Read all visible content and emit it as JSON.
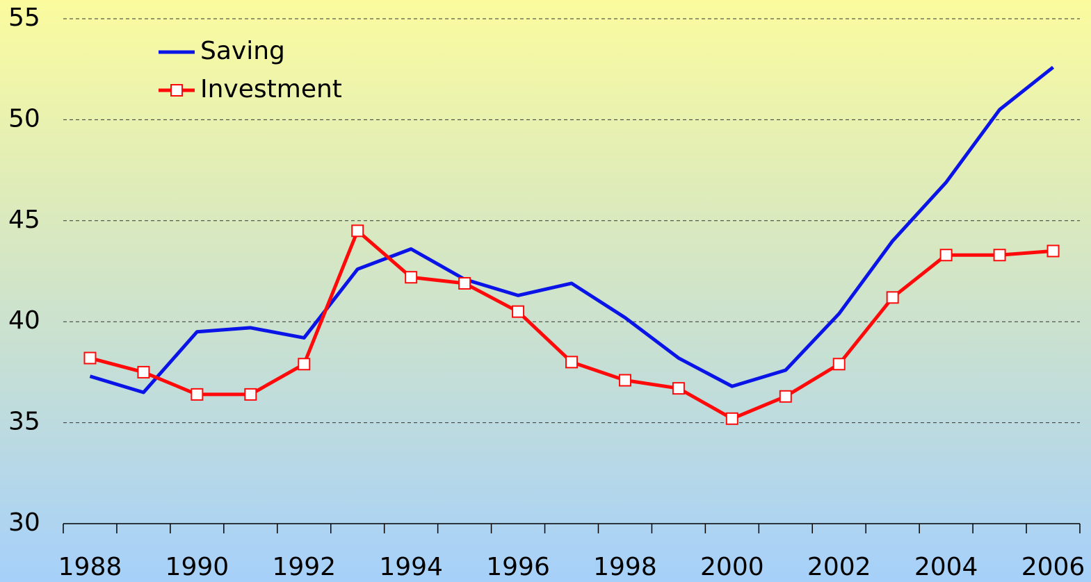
{
  "chart_data": {
    "type": "line",
    "categories": [
      "1988",
      null,
      "1990",
      null,
      "1992",
      null,
      "1994",
      null,
      "1996",
      null,
      "1998",
      null,
      "2000",
      null,
      "2002",
      null,
      "2004",
      null,
      "2006"
    ],
    "series": [
      {
        "name": "Saving",
        "color": "#0a14e6",
        "values": [
          37.3,
          36.5,
          39.5,
          39.7,
          39.2,
          42.6,
          43.6,
          42.1,
          41.3,
          41.9,
          40.2,
          38.2,
          36.8,
          37.6,
          40.4,
          44.0,
          46.9,
          50.5,
          52.6
        ]
      },
      {
        "name": "Investment",
        "color": "#ff0a0a",
        "marker": "square",
        "values": [
          38.2,
          37.5,
          36.4,
          36.4,
          37.9,
          44.5,
          42.2,
          41.9,
          40.5,
          38.0,
          37.1,
          36.7,
          35.2,
          36.3,
          37.9,
          41.2,
          43.3,
          43.3,
          43.5
        ]
      }
    ],
    "ylim": [
      30,
      55
    ],
    "yticks": [
      30,
      35,
      40,
      45,
      50,
      55
    ],
    "grid": true,
    "legend": "top-left"
  }
}
